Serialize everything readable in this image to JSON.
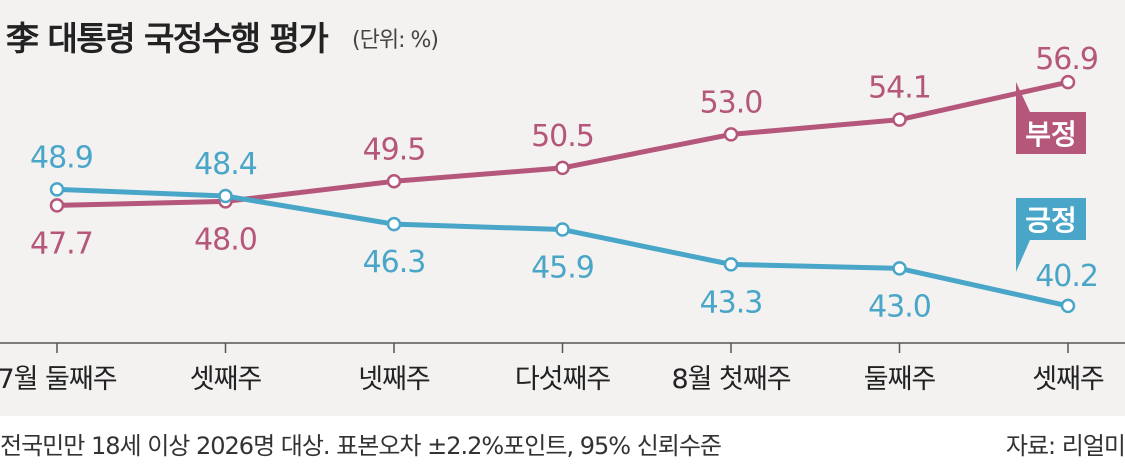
{
  "title": "李 대통령 국정수행 평가",
  "unit": "(단위: %)",
  "footnote": "전국민만 18세 이상 2026명 대상. 표본오차 ±2.2%포인트, 95% 신뢰수준",
  "source": "자료: 리얼미",
  "colors": {
    "negative": "#b5577a",
    "positive": "#4aa6c8",
    "background": "#f4f2f1",
    "axis": "#555555",
    "text": "#222222"
  },
  "chart_data": {
    "type": "line",
    "categories": [
      "7월 둘째주",
      "셋째주",
      "넷째주",
      "다섯째주",
      "8월 첫째주",
      "둘째주",
      "셋째주"
    ],
    "series": [
      {
        "name": "부정",
        "color": "#b5577a",
        "values": [
          47.7,
          48.0,
          49.5,
          50.5,
          53.0,
          54.1,
          56.9
        ],
        "data_labels": [
          "47.7",
          "48.0",
          "49.5",
          "50.5",
          "53.0",
          "54.1",
          "56.9"
        ]
      },
      {
        "name": "긍정",
        "color": "#4aa6c8",
        "values": [
          48.9,
          48.4,
          46.3,
          45.9,
          43.3,
          43.0,
          40.2
        ],
        "data_labels": [
          "48.9",
          "48.4",
          "46.3",
          "45.9",
          "43.3",
          "43.0",
          "40.2"
        ]
      }
    ],
    "ylim": [
      39,
      59
    ],
    "grid": false,
    "legend": "right, labels at line ends"
  }
}
